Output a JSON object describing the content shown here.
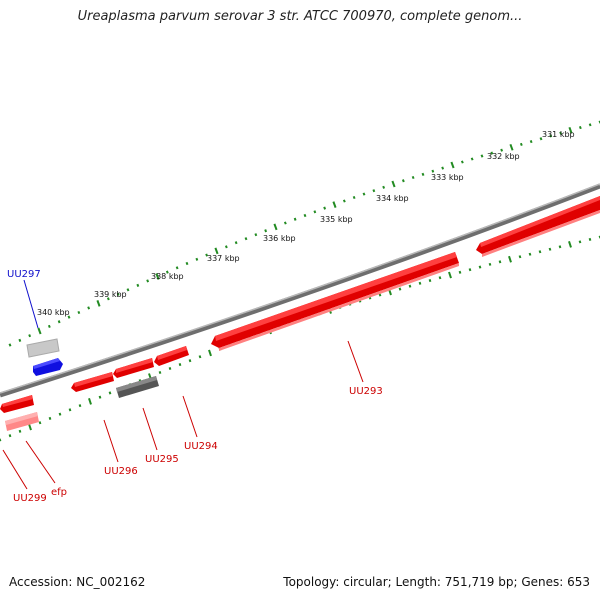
{
  "title": "Ureaplasma parvum serovar 3 str. ATCC 700970, complete genom...",
  "accession": "Accession: NC_002162",
  "summary": "Topology: circular; Length: 751,719 bp; Genes: 653",
  "colors": {
    "backbone": "#808080",
    "ticks": "#228b22",
    "forward_gene": "#ff0000",
    "reverse_gene_pink": "#ff8080",
    "selected_gene": "#1010e0",
    "other_gene": "#606060",
    "label_red": "#cc0000",
    "label_blue": "#1010cc"
  },
  "tick_labels": [
    "340 kbp",
    "339 kbp",
    "338 kbp",
    "337 kbp",
    "336 kbp",
    "335 kbp",
    "334 kbp",
    "333 kbp",
    "332 kbp",
    "331 kbp"
  ],
  "gene_labels": [
    {
      "name": "UU297",
      "color": "blue"
    },
    {
      "name": "UU293",
      "color": "red"
    },
    {
      "name": "UU294",
      "color": "red"
    },
    {
      "name": "UU295",
      "color": "red"
    },
    {
      "name": "UU296",
      "color": "red"
    },
    {
      "name": "UU299",
      "color": "red"
    },
    {
      "name": "efp",
      "color": "red"
    }
  ]
}
